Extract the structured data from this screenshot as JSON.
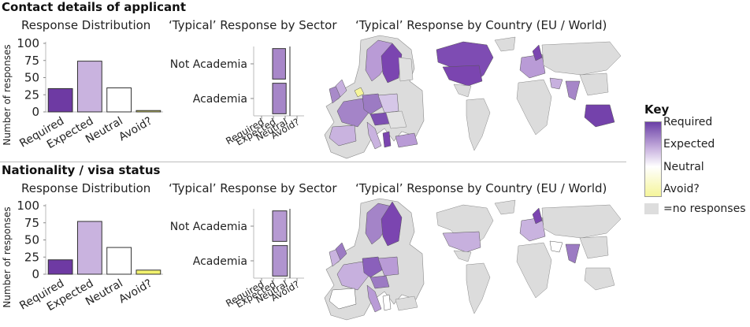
{
  "sections": [
    {
      "title": "Contact details of applicant",
      "panel_titles": {
        "distribution": "Response Distribution",
        "sector": "‘Typical’ Response by Sector",
        "country": "‘Typical’ Response by Country (EU / World)"
      }
    },
    {
      "title": "Nationality / visa status",
      "panel_titles": {
        "distribution": "Response Distribution",
        "sector": "‘Typical’ Response by Sector",
        "country": "‘Typical’ Response by Country (EU / World)"
      }
    }
  ],
  "key": {
    "title": "Key",
    "levels": [
      "Required",
      "Expected",
      "Neutral",
      "Avoid?"
    ],
    "no_response": "=no responses",
    "colors": {
      "required": "#6a3fa6",
      "expected": "#c7b0de",
      "neutral": "#ffffff",
      "avoid": "#f5f59a",
      "no_response": "#dddddd"
    }
  },
  "chart_data": [
    {
      "type": "bar",
      "categories": [
        "Required",
        "Expected",
        "Neutral",
        "Avoid?"
      ],
      "values": [
        34,
        74,
        35,
        2
      ],
      "colors": [
        "#6e3aa3",
        "#c9b3df",
        "#ffffff",
        "#d8d86a"
      ],
      "ylabel": "Number of responses",
      "ylim": [
        0,
        100
      ],
      "yticks": [
        0,
        25,
        50,
        75,
        100
      ]
    },
    {
      "type": "bar",
      "orientation": "horizontal",
      "categories": [
        "Not Academia",
        "Academia"
      ],
      "values": [
        1.65,
        1.7
      ],
      "colors": [
        "#a887c9",
        "#a686c8"
      ],
      "xcategories": [
        "Required",
        "Expected",
        "Neutral",
        "Avoid?"
      ],
      "xlim": [
        0,
        4
      ]
    },
    {
      "type": "bar",
      "categories": [
        "Required",
        "Expected",
        "Neutral",
        "Avoid?"
      ],
      "values": [
        21,
        77,
        39,
        6
      ],
      "colors": [
        "#6e3aa3",
        "#c9b3df",
        "#ffffff",
        "#f2f26e"
      ],
      "ylabel": "Number of responses",
      "ylim": [
        0,
        100
      ],
      "yticks": [
        0,
        25,
        50,
        75,
        100
      ]
    },
    {
      "type": "bar",
      "orientation": "horizontal",
      "categories": [
        "Not Academia",
        "Academia"
      ],
      "values": [
        1.75,
        1.8
      ],
      "colors": [
        "#b69ad2",
        "#b094cf"
      ],
      "xcategories": [
        "Required",
        "Expected",
        "Neutral",
        "Avoid?"
      ],
      "xlim": [
        0,
        4
      ]
    }
  ]
}
